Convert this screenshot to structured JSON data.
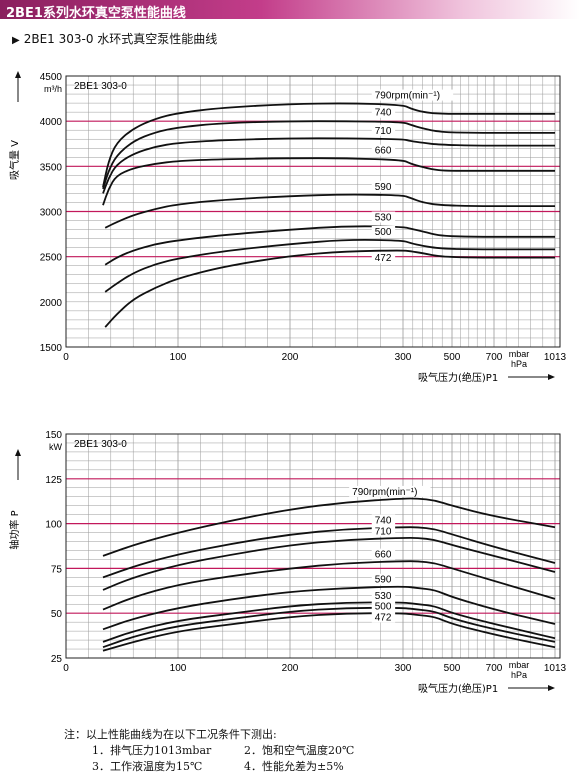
{
  "header": {
    "title": "2BE1系列水环真空泵性能曲线"
  },
  "subtitle": {
    "marker": "▶",
    "text": "2BE1 303-0 水环式真空泵性能曲线"
  },
  "notes": {
    "title": "注：以上性能曲线为在以下工况条件下测出:",
    "items": [
      "1．排气压力1013mbar",
      "2．饱和空气温度20℃",
      "3．工作液温度为15℃",
      "4．性能允差为±5%"
    ]
  },
  "colors": {
    "grid": "#9a9a9a",
    "major_grid": "#c2185b",
    "curve": "#111111",
    "header": "#8a1f5e"
  },
  "chart_data": [
    {
      "type": "line",
      "model_label": "2BE1 303-0",
      "y_unit": "m³/h",
      "ylabel": "吸气量 V",
      "xlabel": "吸气压力(绝压)P1",
      "x_unit_top": "mbar",
      "x_unit_bottom": "hPa",
      "x_ticks": [
        "0",
        "100",
        "200",
        "300",
        "500",
        "700",
        "1013"
      ],
      "x_tick_values": [
        0,
        100,
        200,
        300,
        500,
        700,
        1013
      ],
      "y_ticks": [
        1500,
        2000,
        2500,
        3000,
        3500,
        4000,
        4500
      ],
      "ylim": [
        1500,
        4500
      ],
      "major_y": [
        2500,
        3000,
        3500,
        4000
      ],
      "x_scale": "piecewise",
      "series": [
        {
          "name": "790rpm(min⁻¹)",
          "points": [
            [
              33,
              3270
            ],
            [
              38,
              3560
            ],
            [
              45,
              3760
            ],
            [
              60,
              3920
            ],
            [
              80,
              4030
            ],
            [
              100,
              4090
            ],
            [
              140,
              4150
            ],
            [
              200,
              4190
            ],
            [
              250,
              4200
            ],
            [
              300,
              4180
            ],
            [
              330,
              4140
            ],
            [
              380,
              4100
            ],
            [
              450,
              4080
            ],
            [
              600,
              4080
            ],
            [
              800,
              4080
            ],
            [
              1013,
              4080
            ]
          ]
        },
        {
          "name": "740",
          "points": [
            [
              33,
              3250
            ],
            [
              38,
              3450
            ],
            [
              45,
              3620
            ],
            [
              60,
              3780
            ],
            [
              80,
              3880
            ],
            [
              100,
              3930
            ],
            [
              140,
              3980
            ],
            [
              200,
              4000
            ],
            [
              250,
              4000
            ],
            [
              300,
              3990
            ],
            [
              330,
              3960
            ],
            [
              380,
              3920
            ],
            [
              450,
              3880
            ],
            [
              600,
              3870
            ],
            [
              800,
              3870
            ],
            [
              1013,
              3870
            ]
          ]
        },
        {
          "name": "710",
          "points": [
            [
              33,
              3200
            ],
            [
              38,
              3370
            ],
            [
              45,
              3520
            ],
            [
              60,
              3640
            ],
            [
              80,
              3720
            ],
            [
              100,
              3760
            ],
            [
              140,
              3790
            ],
            [
              200,
              3810
            ],
            [
              250,
              3810
            ],
            [
              300,
              3800
            ],
            [
              330,
              3780
            ],
            [
              380,
              3760
            ],
            [
              450,
              3740
            ],
            [
              600,
              3730
            ],
            [
              800,
              3730
            ],
            [
              1013,
              3730
            ]
          ]
        },
        {
          "name": "660",
          "points": [
            [
              33,
              3070
            ],
            [
              38,
              3250
            ],
            [
              45,
              3400
            ],
            [
              60,
              3480
            ],
            [
              80,
              3530
            ],
            [
              100,
              3560
            ],
            [
              140,
              3580
            ],
            [
              200,
              3590
            ],
            [
              250,
              3590
            ],
            [
              300,
              3570
            ],
            [
              330,
              3530
            ],
            [
              380,
              3490
            ],
            [
              450,
              3450
            ],
            [
              600,
              3450
            ],
            [
              800,
              3450
            ],
            [
              1013,
              3450
            ]
          ]
        },
        {
          "name": "590",
          "points": [
            [
              35,
              2820
            ],
            [
              45,
              2880
            ],
            [
              60,
              2960
            ],
            [
              80,
              3030
            ],
            [
              100,
              3080
            ],
            [
              140,
              3130
            ],
            [
              200,
              3170
            ],
            [
              250,
              3190
            ],
            [
              300,
              3180
            ],
            [
              330,
              3150
            ],
            [
              380,
              3100
            ],
            [
              450,
              3070
            ],
            [
              600,
              3060
            ],
            [
              800,
              3060
            ],
            [
              1013,
              3060
            ]
          ]
        },
        {
          "name": "530",
          "points": [
            [
              35,
              2410
            ],
            [
              45,
              2490
            ],
            [
              60,
              2570
            ],
            [
              80,
              2640
            ],
            [
              100,
              2680
            ],
            [
              140,
              2740
            ],
            [
              200,
              2800
            ],
            [
              250,
              2840
            ],
            [
              300,
              2830
            ],
            [
              330,
              2810
            ],
            [
              380,
              2780
            ],
            [
              450,
              2730
            ],
            [
              600,
              2720
            ],
            [
              800,
              2720
            ],
            [
              1013,
              2720
            ]
          ]
        },
        {
          "name": "500",
          "points": [
            [
              35,
              2110
            ],
            [
              45,
              2200
            ],
            [
              60,
              2320
            ],
            [
              80,
              2420
            ],
            [
              100,
              2480
            ],
            [
              140,
              2560
            ],
            [
              200,
              2640
            ],
            [
              250,
              2690
            ],
            [
              300,
              2680
            ],
            [
              330,
              2650
            ],
            [
              380,
              2620
            ],
            [
              450,
              2590
            ],
            [
              600,
              2580
            ],
            [
              800,
              2580
            ],
            [
              1013,
              2580
            ]
          ]
        },
        {
          "name": "472",
          "points": [
            [
              35,
              1720
            ],
            [
              45,
              1860
            ],
            [
              60,
              2030
            ],
            [
              80,
              2160
            ],
            [
              100,
              2260
            ],
            [
              140,
              2390
            ],
            [
              200,
              2510
            ],
            [
              250,
              2560
            ],
            [
              300,
              2570
            ],
            [
              330,
              2560
            ],
            [
              380,
              2540
            ],
            [
              450,
              2500
            ],
            [
              600,
              2490
            ],
            [
              800,
              2490
            ],
            [
              1013,
              2490
            ]
          ]
        }
      ]
    },
    {
      "type": "line",
      "model_label": "2BE1 303-0",
      "y_unit": "kW",
      "ylabel": "轴功率 P",
      "xlabel": "吸气压力(绝压)P1",
      "x_unit_top": "mbar",
      "x_unit_bottom": "hPa",
      "x_ticks": [
        "0",
        "100",
        "200",
        "300",
        "500",
        "700",
        "1013"
      ],
      "x_tick_values": [
        0,
        100,
        200,
        300,
        500,
        700,
        1013
      ],
      "y_ticks": [
        25,
        50,
        75,
        100,
        125,
        150
      ],
      "ylim": [
        25,
        150
      ],
      "major_y": [
        50,
        75,
        100,
        125
      ],
      "x_scale": "piecewise",
      "series": [
        {
          "name": "790rpm(min⁻¹)",
          "points": [
            [
              33,
              82
            ],
            [
              60,
              88
            ],
            [
              100,
              95
            ],
            [
              150,
              102
            ],
            [
              200,
              108
            ],
            [
              250,
              112
            ],
            [
              300,
              114
            ],
            [
              360,
              114
            ],
            [
              430,
              113
            ],
            [
              500,
              110
            ],
            [
              700,
              104
            ],
            [
              1013,
              98
            ]
          ]
        },
        {
          "name": "740",
          "points": [
            [
              33,
              70
            ],
            [
              60,
              76
            ],
            [
              100,
              83
            ],
            [
              150,
              89
            ],
            [
              200,
              94
            ],
            [
              250,
              97
            ],
            [
              300,
              98
            ],
            [
              360,
              98
            ],
            [
              430,
              97
            ],
            [
              500,
              94
            ],
            [
              700,
              87
            ],
            [
              1013,
              78
            ]
          ]
        },
        {
          "name": "710",
          "points": [
            [
              33,
              63
            ],
            [
              60,
              70
            ],
            [
              100,
              77
            ],
            [
              150,
              83
            ],
            [
              200,
              88
            ],
            [
              250,
              91
            ],
            [
              300,
              92
            ],
            [
              360,
              92
            ],
            [
              430,
              91
            ],
            [
              500,
              88
            ],
            [
              700,
              82
            ],
            [
              1013,
              73
            ]
          ]
        },
        {
          "name": "660",
          "points": [
            [
              33,
              52
            ],
            [
              60,
              59
            ],
            [
              100,
              66
            ],
            [
              150,
              71
            ],
            [
              200,
              75
            ],
            [
              250,
              78
            ],
            [
              300,
              79
            ],
            [
              360,
              79
            ],
            [
              430,
              78
            ],
            [
              500,
              75
            ],
            [
              700,
              68
            ],
            [
              1013,
              58
            ]
          ]
        },
        {
          "name": "590",
          "points": [
            [
              33,
              41
            ],
            [
              60,
              47
            ],
            [
              100,
              53
            ],
            [
              150,
              58
            ],
            [
              200,
              62
            ],
            [
              250,
              64
            ],
            [
              300,
              65
            ],
            [
              360,
              64
            ],
            [
              430,
              63
            ],
            [
              500,
              59
            ],
            [
              700,
              52
            ],
            [
              1013,
              44
            ]
          ]
        },
        {
          "name": "530",
          "points": [
            [
              33,
              34
            ],
            [
              60,
              40
            ],
            [
              100,
              46
            ],
            [
              150,
              50
            ],
            [
              200,
              54
            ],
            [
              250,
              56
            ],
            [
              300,
              56
            ],
            [
              360,
              55
            ],
            [
              430,
              54
            ],
            [
              500,
              50
            ],
            [
              700,
              44
            ],
            [
              1013,
              36
            ]
          ]
        },
        {
          "name": "500",
          "points": [
            [
              33,
              31
            ],
            [
              60,
              37
            ],
            [
              100,
              43
            ],
            [
              150,
              47
            ],
            [
              200,
              51
            ],
            [
              250,
              53
            ],
            [
              300,
              53
            ],
            [
              360,
              52
            ],
            [
              430,
              51
            ],
            [
              500,
              47
            ],
            [
              700,
              41
            ],
            [
              1013,
              34
            ]
          ]
        },
        {
          "name": "472",
          "points": [
            [
              33,
              29
            ],
            [
              60,
              34
            ],
            [
              100,
              40
            ],
            [
              150,
              44
            ],
            [
              200,
              48
            ],
            [
              250,
              50
            ],
            [
              300,
              50
            ],
            [
              360,
              49
            ],
            [
              430,
              48
            ],
            [
              500,
              44
            ],
            [
              700,
              38
            ],
            [
              1013,
              31
            ]
          ]
        }
      ]
    }
  ]
}
